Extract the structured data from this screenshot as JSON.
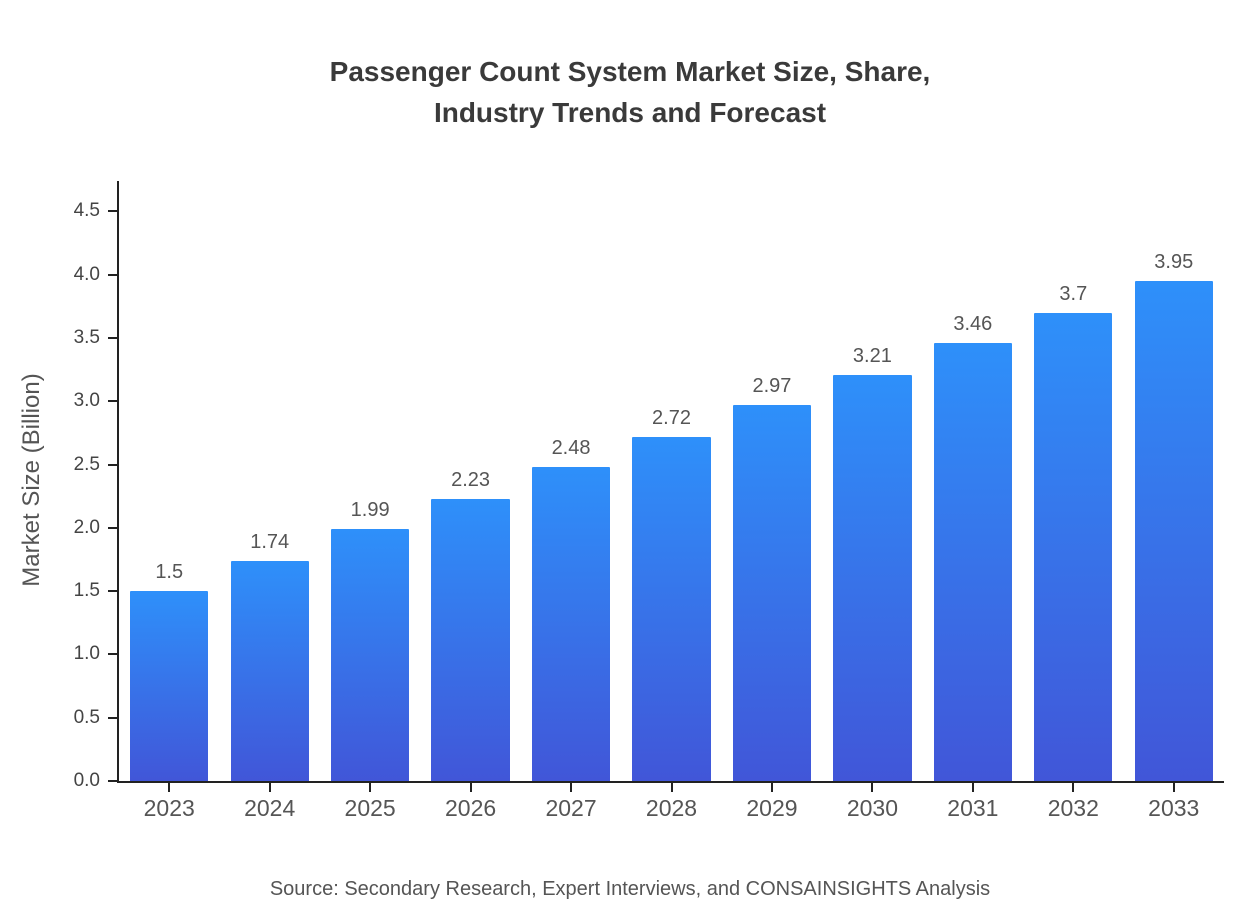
{
  "title": {
    "line1": "Passenger Count System Market Size, Share,",
    "line2": "Industry Trends and Forecast"
  },
  "source": "Source: Secondary Research, Expert Interviews, and CONSAINSIGHTS Analysis",
  "chart_data": {
    "type": "bar",
    "title": "Passenger Count System Market Size, Share, Industry Trends and Forecast",
    "xlabel": "",
    "ylabel": "Market Size (Billion)",
    "categories": [
      "2023",
      "2024",
      "2025",
      "2026",
      "2027",
      "2028",
      "2029",
      "2030",
      "2031",
      "2032",
      "2033"
    ],
    "values": [
      1.5,
      1.74,
      1.99,
      2.23,
      2.48,
      2.72,
      2.97,
      3.21,
      3.46,
      3.7,
      3.95
    ],
    "value_labels": [
      "1.5",
      "1.74",
      "1.99",
      "2.23",
      "2.48",
      "2.72",
      "2.97",
      "3.21",
      "3.46",
      "3.7",
      "3.95"
    ],
    "yticks": [
      "0.0",
      "0.5",
      "1.0",
      "1.5",
      "2.0",
      "2.5",
      "3.0",
      "3.5",
      "4.0",
      "4.5"
    ],
    "ylim": [
      0,
      4.5
    ],
    "axis_max": 4.74,
    "grid": false,
    "legend": "none",
    "bar_color_top": "#2e90fa",
    "bar_color_bottom": "#4156d8",
    "axis_color": "#222222",
    "text_color": "#555555"
  }
}
